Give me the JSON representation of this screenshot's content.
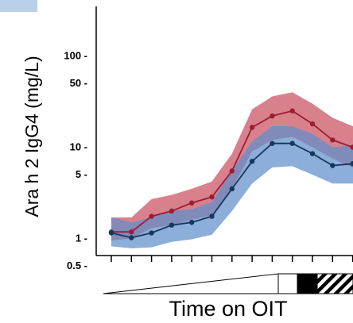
{
  "chart_data": {
    "type": "line",
    "title": "",
    "ylabel": "Ara h 2 IgG4 (mg/L)",
    "xlabel": "Time on OIT",
    "yscale": "log",
    "ylim": [
      0.35,
      200
    ],
    "yticks": [
      {
        "value": 100,
        "label": "100 -"
      },
      {
        "value": 50,
        "label": "50 -"
      },
      {
        "value": 10,
        "label": "10 -"
      },
      {
        "value": 5,
        "label": "5 -"
      },
      {
        "value": 1,
        "label": "1 -"
      },
      {
        "value": 0.5,
        "label": "0.5 -"
      }
    ],
    "x": [
      1,
      2,
      3,
      4,
      5,
      6,
      7,
      8,
      9,
      10,
      11,
      12,
      13,
      14
    ],
    "grid": false,
    "series": [
      {
        "color": "#9b1d35",
        "band_color": "#c9505f",
        "values": [
          1.18,
          1.18,
          1.75,
          2.0,
          2.45,
          2.85,
          5.5,
          16.5,
          22.0,
          25.0,
          18.0,
          12.0,
          10.0,
          9.0
        ],
        "band_lower": [
          0.95,
          1.0,
          1.3,
          1.4,
          1.6,
          1.8,
          3.5,
          9.0,
          12.0,
          13.0,
          10.0,
          7.5,
          6.0,
          5.5
        ],
        "band_upper": [
          1.7,
          1.7,
          2.7,
          3.0,
          3.5,
          4.2,
          8.5,
          26.0,
          36.0,
          40.0,
          30.0,
          21.0,
          17.0,
          16.0
        ]
      },
      {
        "color": "#16375d",
        "band_color": "#5f8fcb",
        "values": [
          1.15,
          1.02,
          1.15,
          1.4,
          1.5,
          1.75,
          3.5,
          7.0,
          11.0,
          11.0,
          8.5,
          6.3,
          6.6,
          6.2
        ],
        "band_lower": [
          0.82,
          0.78,
          0.8,
          0.92,
          0.98,
          1.1,
          2.0,
          4.0,
          6.0,
          6.2,
          5.0,
          4.0,
          4.0,
          3.8
        ],
        "band_upper": [
          1.7,
          1.5,
          1.7,
          2.0,
          2.1,
          2.5,
          5.5,
          11.5,
          17.0,
          17.0,
          14.0,
          10.0,
          10.5,
          10.0
        ]
      }
    ]
  },
  "icons": {
    "dose_ramp": "wedge-triangle",
    "phase_blocks": "white-black-hatched-bars"
  }
}
